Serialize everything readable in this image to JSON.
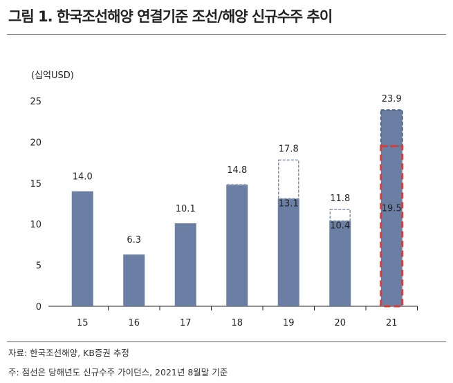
{
  "title": "그림 1. 한국조선해양 연결기준 조선/해양 신규수주 추이",
  "notes": [
    "자료: 한국조선해양, KB증권 추정",
    "주: 점선은 당해년도 신규수주 가이던스, 2021년 8월말 기준"
  ],
  "chart_data": {
    "type": "bar",
    "unit_label": "(십억USD)",
    "categories": [
      "15",
      "16",
      "17",
      "18",
      "19",
      "20",
      "21"
    ],
    "values": [
      14.0,
      6.3,
      10.1,
      14.8,
      13.1,
      10.4,
      23.9
    ],
    "guidance": [
      null,
      null,
      null,
      14.8,
      17.8,
      11.8,
      null
    ],
    "highlight": {
      "category": "21",
      "value": 19.5,
      "color": "#e03a35"
    },
    "labels": [
      "14.0",
      "6.3",
      "10.1",
      "14.8",
      "13.1",
      "10.4",
      "23.9"
    ],
    "guidance_labels": [
      null,
      null,
      null,
      null,
      "17.8",
      "11.8",
      "19.5"
    ],
    "ylim": [
      0,
      25
    ],
    "yticks": [
      0,
      5,
      10,
      15,
      20,
      25
    ],
    "bar_color": "#6a7fa3",
    "grid": false
  }
}
